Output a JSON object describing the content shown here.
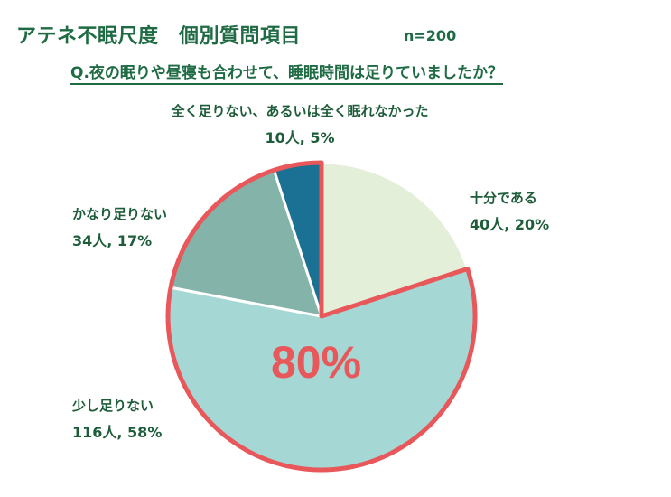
{
  "header": {
    "title": "アテネ不眠尺度　個別質問項目",
    "n_label": "n=200",
    "question": "Q.夜の眠りや昼寝も合わせて、睡眠時間は足りていましたか？"
  },
  "highlight": {
    "text": "80%",
    "color": "#e8585a"
  },
  "chart_data": {
    "type": "pie",
    "title": "Q.夜の眠りや昼寝も合わせて、睡眠時間は足りていましたか？",
    "n": 200,
    "slices": [
      {
        "label": "十分である",
        "count": 40,
        "percent": 20,
        "count_text": "40人, 20%",
        "color": "#e3efd9"
      },
      {
        "label": "少し足りない",
        "count": 116,
        "percent": 58,
        "count_text": "116人, 58%",
        "color": "#a5d8d5"
      },
      {
        "label": "かなり足りない",
        "count": 34,
        "percent": 17,
        "count_text": "34人, 17%",
        "color": "#84b3aa"
      },
      {
        "label": "全く足りない、あるいは全く眠れなかった",
        "count": 10,
        "percent": 5,
        "count_text": "10人, 5%",
        "color": "#1a7194"
      }
    ],
    "highlighted_group": [
      "少し足りない",
      "かなり足りない",
      "全く足りない、あるいは全く眠れなかった"
    ],
    "highlighted_total_percent": 80
  }
}
